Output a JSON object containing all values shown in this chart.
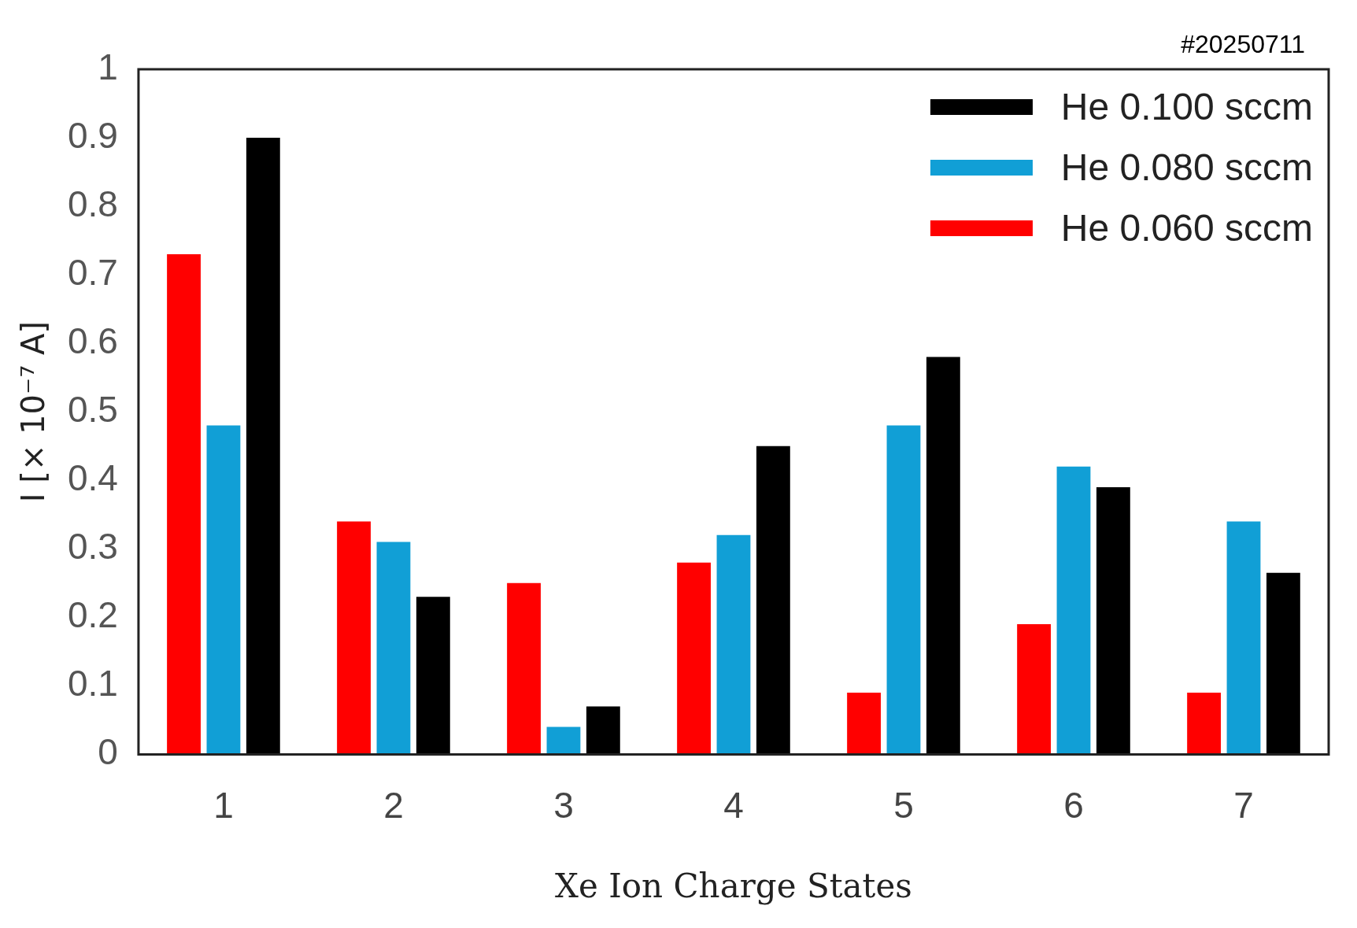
{
  "chart_data": {
    "type": "bar",
    "xlabel": "Xe Ion Charge States",
    "ylabel": "I [× 10⁻⁷ A]",
    "annotations": [
      "#20250711"
    ],
    "categories": [
      "1",
      "2",
      "3",
      "4",
      "5",
      "6",
      "7"
    ],
    "series": [
      {
        "name": "He 0.060 sccm",
        "color": "#ff0000",
        "values": [
          0.73,
          0.34,
          0.25,
          0.28,
          0.09,
          0.19,
          0.09
        ]
      },
      {
        "name": "He 0.080 sccm",
        "color": "#119fd6",
        "values": [
          0.48,
          0.31,
          0.04,
          0.32,
          0.48,
          0.42,
          0.34
        ]
      },
      {
        "name": "He 0.100 sccm",
        "color": "#000000",
        "values": [
          0.9,
          0.23,
          0.07,
          0.45,
          0.58,
          0.39,
          0.265
        ]
      }
    ],
    "ylim": [
      0,
      1
    ],
    "yticks": [
      0,
      0.1,
      0.2,
      0.3,
      0.4,
      0.5,
      0.6,
      0.7,
      0.8,
      0.9,
      1
    ],
    "grid": false,
    "legend": "top right"
  }
}
